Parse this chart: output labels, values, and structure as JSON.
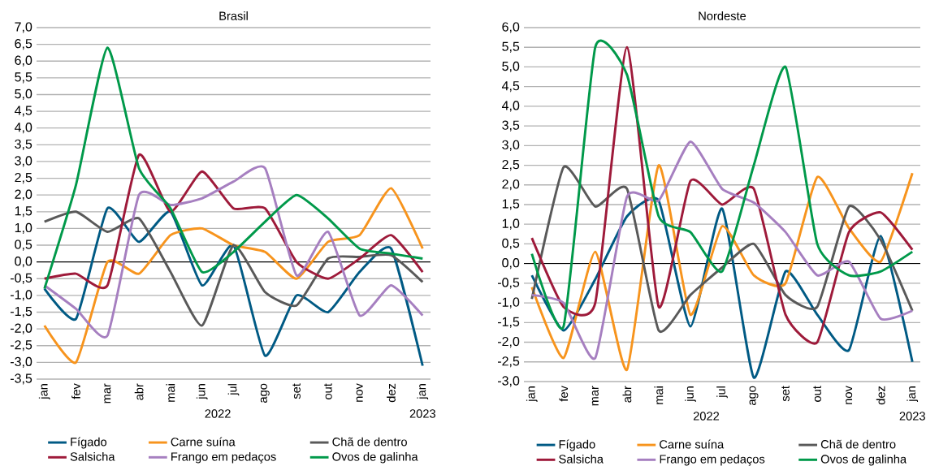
{
  "chart_data": [
    {
      "type": "line",
      "title": "Brasil",
      "categories": [
        "jan",
        "fev",
        "mar",
        "abr",
        "mai",
        "jun",
        "jul",
        "ago",
        "set",
        "out",
        "nov",
        "dez",
        "jan"
      ],
      "annotations": [
        "2022",
        "2023"
      ],
      "series": [
        {
          "name": "Fígado",
          "color": "#005a84",
          "values": [
            -0.8,
            -1.7,
            1.6,
            0.6,
            1.5,
            -0.7,
            0.5,
            -2.8,
            -1.0,
            -1.5,
            -0.3,
            0.4,
            -3.1
          ]
        },
        {
          "name": "Carne suína",
          "color": "#f7941d",
          "values": [
            -1.9,
            -3.0,
            0.0,
            -0.35,
            0.8,
            1.0,
            0.5,
            0.3,
            -0.5,
            0.6,
            0.8,
            2.2,
            0.4
          ]
        },
        {
          "name": "Chã de dentro",
          "color": "#595959",
          "values": [
            1.2,
            1.5,
            0.9,
            1.3,
            -0.3,
            -1.9,
            0.5,
            -0.9,
            -1.3,
            0.1,
            0.15,
            0.2,
            -0.6
          ]
        },
        {
          "name": "Salsicha",
          "color": "#9e1a3a",
          "values": [
            -0.5,
            -0.35,
            -0.7,
            3.2,
            1.5,
            2.7,
            1.6,
            1.6,
            0.0,
            -0.5,
            0.1,
            0.8,
            -0.3
          ]
        },
        {
          "name": "Frango em pedaços",
          "color": "#a67fc0",
          "values": [
            -0.7,
            -1.4,
            -2.2,
            2.0,
            1.7,
            1.9,
            2.4,
            2.8,
            -0.4,
            0.9,
            -1.6,
            -0.7,
            -1.6
          ]
        },
        {
          "name": "Ovos de galinha",
          "color": "#00994a",
          "values": [
            -0.8,
            2.3,
            6.4,
            2.8,
            1.6,
            -0.3,
            0.3,
            1.2,
            2.0,
            1.3,
            0.4,
            0.25,
            0.1
          ]
        }
      ],
      "ylim": [
        -3.5,
        7.0
      ],
      "yticks": [
        {
          "value": -3.5,
          "label": "-3,5"
        },
        {
          "value": -3.0,
          "label": "-3,0"
        },
        {
          "value": -2.5,
          "label": "-2,5"
        },
        {
          "value": -2.0,
          "label": "-2,0"
        },
        {
          "value": -1.5,
          "label": "-1,5"
        },
        {
          "value": -1.0,
          "label": "-1,0"
        },
        {
          "value": -0.5,
          "label": "-0,5"
        },
        {
          "value": 0.0,
          "label": "0,0"
        },
        {
          "value": 0.5,
          "label": "0,5"
        },
        {
          "value": 1.0,
          "label": "1,0"
        },
        {
          "value": 1.5,
          "label": "1,5"
        },
        {
          "value": 2.0,
          "label": "2,0"
        },
        {
          "value": 2.5,
          "label": "2,5"
        },
        {
          "value": 3.0,
          "label": "3,0"
        },
        {
          "value": 3.5,
          "label": "3,5"
        },
        {
          "value": 4.0,
          "label": "4,0"
        },
        {
          "value": 4.5,
          "label": "4,5"
        },
        {
          "value": 5.0,
          "label": "5,0"
        },
        {
          "value": 5.5,
          "label": "5,5"
        },
        {
          "value": 6.0,
          "label": "6,0"
        },
        {
          "value": 6.5,
          "label": "6,5"
        },
        {
          "value": 7.0,
          "label": "7,0"
        }
      ],
      "ref_lines": [
        {
          "axis": "y",
          "value": 0,
          "color": "#000000"
        }
      ],
      "grid": "y",
      "legend": "bottom",
      "marker": "none",
      "line_style": "solid"
    },
    {
      "type": "line",
      "title": "Nordeste",
      "categories": [
        "jan",
        "fev",
        "mar",
        "abr",
        "mai",
        "jun",
        "jul",
        "ago",
        "set",
        "out",
        "nov",
        "dez",
        "jan"
      ],
      "annotations": [
        "2022",
        "2023"
      ],
      "series": [
        {
          "name": "Fígado",
          "color": "#005a84",
          "values": [
            -0.3,
            -1.7,
            -0.4,
            1.2,
            1.6,
            -1.6,
            1.4,
            -2.9,
            -0.2,
            -1.3,
            -2.2,
            0.7,
            -2.5
          ]
        },
        {
          "name": "Carne suína",
          "color": "#f7941d",
          "values": [
            -0.6,
            -2.4,
            0.3,
            -2.7,
            2.5,
            -1.3,
            0.95,
            -0.3,
            -0.5,
            2.2,
            0.9,
            0.05,
            2.3
          ]
        },
        {
          "name": "Chã de dentro",
          "color": "#595959",
          "values": [
            -0.9,
            2.45,
            1.45,
            1.9,
            -1.7,
            -0.8,
            -0.1,
            0.5,
            -0.8,
            -1.1,
            1.45,
            0.6,
            -1.2
          ]
        },
        {
          "name": "Salsicha",
          "color": "#9e1a3a",
          "values": [
            0.65,
            -1.1,
            -1.0,
            5.5,
            -1.1,
            2.1,
            1.5,
            1.9,
            -1.3,
            -2.0,
            0.8,
            1.3,
            0.35
          ]
        },
        {
          "name": "Frango em pedaços",
          "color": "#a67fc0",
          "values": [
            -0.8,
            -1.0,
            -2.4,
            1.7,
            1.6,
            3.1,
            1.9,
            1.55,
            0.8,
            -0.3,
            0.05,
            -1.4,
            -1.2
          ]
        },
        {
          "name": "Ovos de galinha",
          "color": "#00994a",
          "values": [
            0.25,
            -1.6,
            5.5,
            4.8,
            1.2,
            0.8,
            -0.2,
            2.5,
            5.0,
            0.5,
            -0.3,
            -0.2,
            0.3
          ]
        }
      ],
      "ylim": [
        -3.0,
        6.0
      ],
      "yticks": [
        {
          "value": -3.0,
          "label": "-3,0"
        },
        {
          "value": -2.5,
          "label": "-2,5"
        },
        {
          "value": -2.0,
          "label": "-2,0"
        },
        {
          "value": -1.5,
          "label": "-1,5"
        },
        {
          "value": -1.0,
          "label": "-1,0"
        },
        {
          "value": -0.5,
          "label": "-0,5"
        },
        {
          "value": 0.0,
          "label": "0,0"
        },
        {
          "value": 0.5,
          "label": "0,5"
        },
        {
          "value": 1.0,
          "label": "1,0"
        },
        {
          "value": 1.5,
          "label": "1,5"
        },
        {
          "value": 2.0,
          "label": "2,0"
        },
        {
          "value": 2.5,
          "label": "2,5"
        },
        {
          "value": 3.0,
          "label": "3,0"
        },
        {
          "value": 3.5,
          "label": "3,5"
        },
        {
          "value": 4.0,
          "label": "4,0"
        },
        {
          "value": 4.5,
          "label": "4,5"
        },
        {
          "value": 5.0,
          "label": "5,0"
        },
        {
          "value": 5.5,
          "label": "5,5"
        },
        {
          "value": 6.0,
          "label": "6,0"
        }
      ],
      "ref_lines": [
        {
          "axis": "y",
          "value": 0,
          "color": "#000000"
        }
      ],
      "grid": "y",
      "legend": "bottom",
      "marker": "none",
      "line_style": "solid"
    }
  ]
}
